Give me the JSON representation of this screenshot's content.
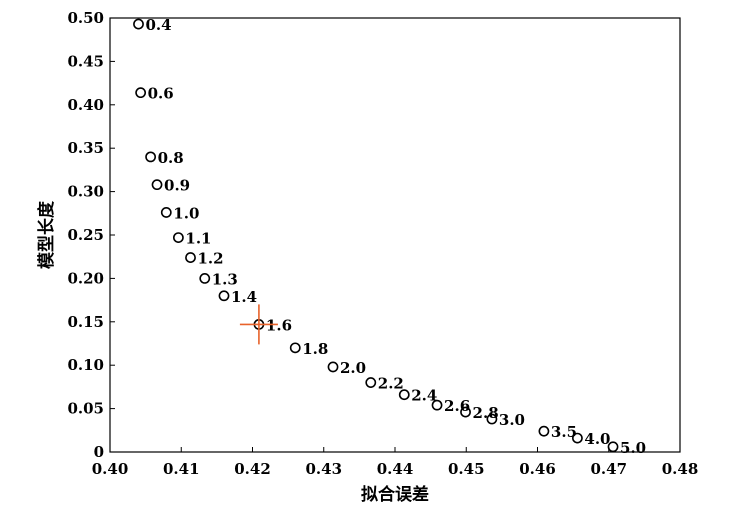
{
  "chart_data": {
    "type": "scatter",
    "xlabel": "拟合误差",
    "ylabel": "模型长度",
    "xlim": [
      0.4,
      0.48
    ],
    "ylim": [
      0,
      0.5
    ],
    "x_ticks": [
      "0.40",
      "0.41",
      "0.42",
      "0.43",
      "0.44",
      "0.45",
      "0.46",
      "0.47",
      "0.48"
    ],
    "y_ticks": [
      "0",
      "0.05",
      "0.10",
      "0.15",
      "0.20",
      "0.25",
      "0.30",
      "0.35",
      "0.40",
      "0.45",
      "0.50"
    ],
    "points": [
      {
        "x": 0.404,
        "y": 0.493,
        "label": "0.4"
      },
      {
        "x": 0.4043,
        "y": 0.414,
        "label": "0.6"
      },
      {
        "x": 0.4057,
        "y": 0.34,
        "label": "0.8"
      },
      {
        "x": 0.4066,
        "y": 0.308,
        "label": "0.9"
      },
      {
        "x": 0.4079,
        "y": 0.276,
        "label": "1.0"
      },
      {
        "x": 0.4096,
        "y": 0.247,
        "label": "1.1"
      },
      {
        "x": 0.4113,
        "y": 0.224,
        "label": "1.2"
      },
      {
        "x": 0.4133,
        "y": 0.2,
        "label": "1.3"
      },
      {
        "x": 0.416,
        "y": 0.18,
        "label": "1.4"
      },
      {
        "x": 0.4209,
        "y": 0.147,
        "label": "1.6"
      },
      {
        "x": 0.426,
        "y": 0.12,
        "label": "1.8"
      },
      {
        "x": 0.4313,
        "y": 0.098,
        "label": "2.0"
      },
      {
        "x": 0.4366,
        "y": 0.08,
        "label": "2.2"
      },
      {
        "x": 0.4413,
        "y": 0.066,
        "label": "2.4"
      },
      {
        "x": 0.4459,
        "y": 0.054,
        "label": "2.6"
      },
      {
        "x": 0.4499,
        "y": 0.046,
        "label": "2.8"
      },
      {
        "x": 0.4536,
        "y": 0.038,
        "label": "3.0"
      },
      {
        "x": 0.4609,
        "y": 0.024,
        "label": "3.5"
      },
      {
        "x": 0.4656,
        "y": 0.016,
        "label": "4.0"
      },
      {
        "x": 0.4706,
        "y": 0.006,
        "label": "5.0"
      }
    ],
    "highlight": {
      "x": 0.4209,
      "y": 0.147,
      "label": "1.6",
      "color": "#e8622a"
    },
    "marker_color": "#000000",
    "grid": false
  }
}
